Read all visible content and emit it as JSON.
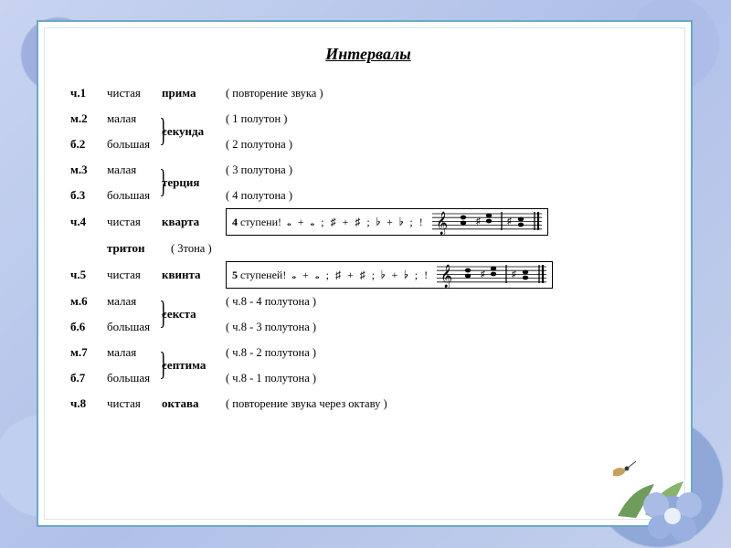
{
  "title": "Интервалы",
  "colors": {
    "frame_border": "#6aa9c4",
    "background": "#ffffff",
    "text": "#000000",
    "page_bg": "#b8c8e8"
  },
  "rows": [
    {
      "abbr": "ч.1",
      "qual": "чистая",
      "name": "прима",
      "desc": "( повторение звука )",
      "solo_name": true
    },
    {
      "abbr": "м.2",
      "qual": "малая",
      "name": "",
      "desc": "( 1 полутон )"
    },
    {
      "abbr": "б.2",
      "qual": "большая",
      "name": "секунда",
      "desc": "( 2 полутона )",
      "brace_above": true
    },
    {
      "abbr": "м.3",
      "qual": "малая",
      "name": "",
      "desc": "( 3 полутона )"
    },
    {
      "abbr": "б.3",
      "qual": "большая",
      "name": "терция",
      "desc": "( 4 полутона )",
      "brace_above": true
    },
    {
      "abbr": "ч.4",
      "qual": "чистая",
      "name": "кварта",
      "box": "kvarta"
    },
    {
      "abbr": "",
      "qual": "",
      "name": "тритон",
      "desc": "( 3тона )",
      "triton": true
    },
    {
      "abbr": "ч.5",
      "qual": "чистая",
      "name": "квинта",
      "box": "kvinta"
    },
    {
      "abbr": "м.6",
      "qual": "малая",
      "name": "",
      "desc": "( ч.8 - 4 полутона )"
    },
    {
      "abbr": "б.6",
      "qual": "большая",
      "name": "секста",
      "desc": "( ч.8 - 3 полутона )",
      "brace_above": true
    },
    {
      "abbr": "м.7",
      "qual": "малая",
      "name": "",
      "desc": "( ч.8 - 2 полутона )"
    },
    {
      "abbr": "б.7",
      "qual": "большая",
      "name": "септима",
      "desc": "( ч.8 - 1 полутона )",
      "brace_above": true
    },
    {
      "abbr": "ч.8",
      "qual": "чистая",
      "name": "октава",
      "desc": "( повторение звука через октаву )",
      "solo_name": true
    }
  ],
  "boxes": {
    "kvarta": {
      "lead_bold": "4",
      "lead_rest": " ступени!",
      "symbols": "𝅝 + 𝅝 ;   ♯ + ♯ ;   ♭ + ♭ ;  !"
    },
    "kvinta": {
      "lead_bold": "5",
      "lead_rest": " ступеней!",
      "symbols": "𝅝 + 𝅝 ;   ♯ + ♯ ;   ♭ + ♭ ; !"
    }
  }
}
